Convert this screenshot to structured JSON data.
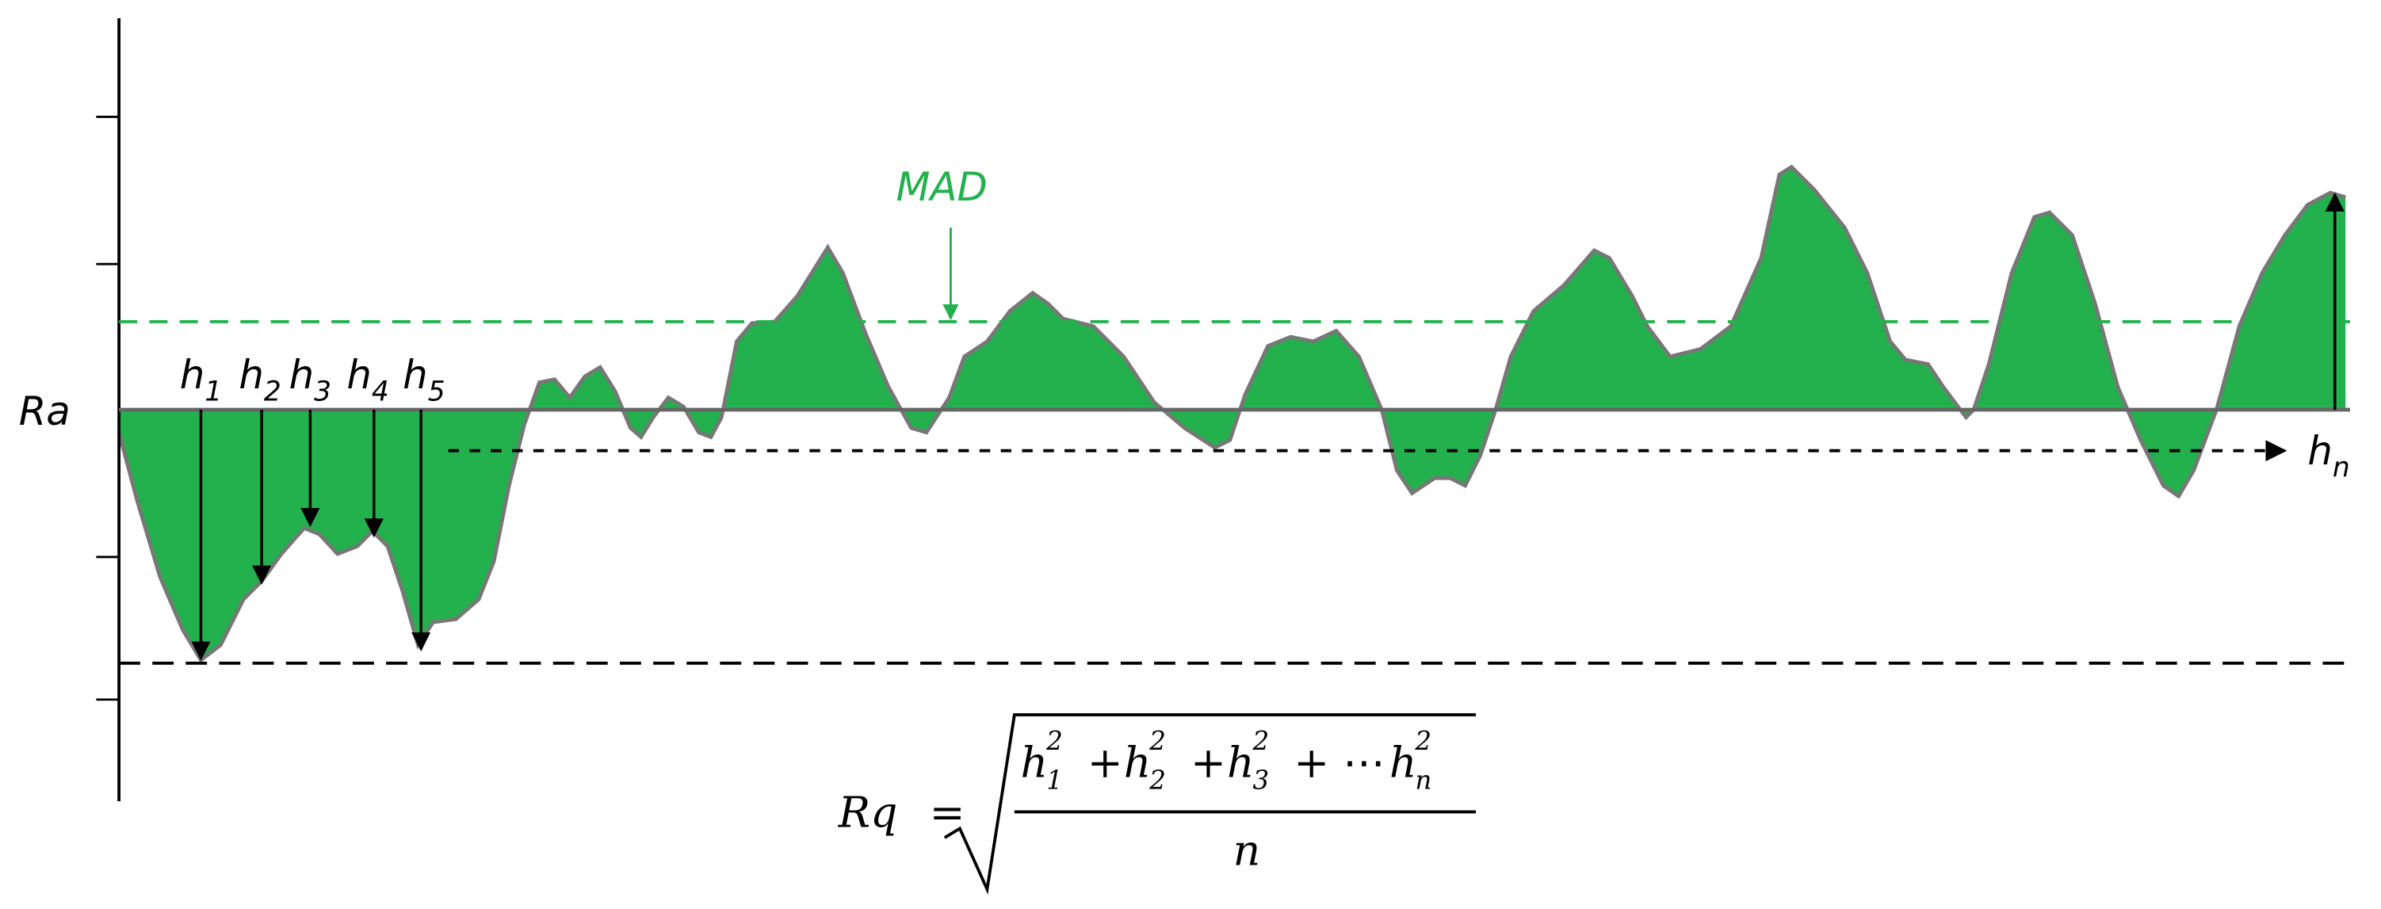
{
  "labels": {
    "ra": "Ra",
    "mad": "MAD",
    "h": "h",
    "subscripts": [
      "1",
      "2",
      "3",
      "4",
      "5"
    ],
    "hn": "n"
  },
  "formula": {
    "lhs": "Rq",
    "eq": "=",
    "terms": [
      {
        "base": "h",
        "sub": "1",
        "sup": "2"
      },
      {
        "base": "h",
        "sub": "2",
        "sup": "2"
      },
      {
        "base": "h",
        "sub": "3",
        "sup": "2"
      },
      {
        "base": "h",
        "sub": "n",
        "sup": "2"
      }
    ],
    "ops": [
      "+",
      "+",
      "+ ⋯"
    ],
    "denominator": "n"
  }
}
